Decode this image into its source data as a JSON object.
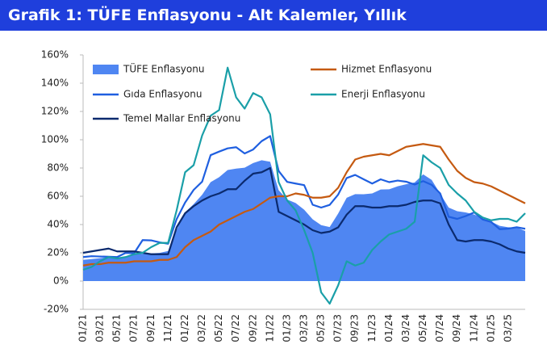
{
  "chart_data": {
    "type": "line",
    "title": "Grafik 1: TÜFE Enflasyonu - Alt Kalemler, Yıllık",
    "categories": [
      "01/21",
      null,
      "03/21",
      null,
      "05/21",
      null,
      "07/21",
      null,
      "09/21",
      null,
      "11/21",
      null,
      "01/22",
      null,
      "03/22",
      null,
      "05/22",
      null,
      "07/22",
      null,
      "09/22",
      null,
      "11/22",
      null,
      "01/23",
      null,
      "03/23",
      null,
      "05/23",
      null,
      "07/23",
      null,
      "09/23",
      null,
      "11/23",
      null,
      "01/24",
      null,
      "03/24",
      null,
      "05/24",
      null,
      "07/24",
      null,
      "09/24",
      null,
      "11/24",
      null,
      "01/25",
      null,
      "03/25",
      null,
      null
    ],
    "series": [
      {
        "name": "TÜFE Enflasyonu",
        "style": "area",
        "color": "#4f86f2",
        "values": [
          15,
          15.6,
          16.2,
          17.1,
          16.6,
          17.5,
          19,
          19.3,
          19.6,
          19.9,
          21.3,
          36.1,
          48.7,
          54.4,
          61.1,
          70,
          73.5,
          78.6,
          79.6,
          80.2,
          83.5,
          85.5,
          84.4,
          64.3,
          57.7,
          55.2,
          50.5,
          43.7,
          39.6,
          38.2,
          47.8,
          58.9,
          61.5,
          61.4,
          62,
          64.8,
          64.9,
          67.1,
          68.5,
          69.8,
          75.5,
          71.6,
          61.8,
          52,
          49.4,
          48.6,
          47.1,
          44.4,
          42.1,
          39.1,
          38.1,
          37.9,
          35.4
        ]
      },
      {
        "name": "Gıda Enflasyonu",
        "style": "line",
        "color": "#1f5fe0",
        "values": [
          17,
          17.6,
          17.4,
          17.2,
          17,
          19.9,
          19.7,
          29,
          28.8,
          27.4,
          26.4,
          43.8,
          55.6,
          64.5,
          70.3,
          89.1,
          91.6,
          93.9,
          94.7,
          90.3,
          93.1,
          99,
          102.6,
          77.9,
          70.2,
          69,
          67.9,
          54,
          52,
          53.9,
          61.2,
          72.9,
          75.1,
          72,
          69,
          72,
          70,
          71.1,
          70.3,
          68.3,
          70.7,
          68.1,
          62,
          45.5,
          44,
          46,
          48.6,
          43.6,
          41.8,
          36.7,
          37.1,
          38.1,
          37
        ]
      },
      {
        "name": "Temel Mallar Enflasyonu",
        "style": "line",
        "color": "#0b2a6e",
        "values": [
          20,
          21,
          22,
          23,
          21,
          21,
          21,
          20,
          19,
          19,
          19,
          38,
          48,
          53,
          57,
          60,
          62,
          65,
          65,
          71,
          76,
          77,
          80,
          49,
          46,
          43,
          40,
          36,
          34,
          35,
          38,
          47,
          53,
          53,
          52,
          52,
          53,
          53,
          54,
          56,
          57,
          57,
          55,
          40,
          29,
          28,
          29,
          29,
          28,
          26,
          23,
          21,
          20
        ]
      },
      {
        "name": "Hizmet Enflasyonu",
        "style": "line",
        "color": "#c55a11",
        "values": [
          11,
          12,
          12,
          13,
          13,
          13,
          14,
          14,
          14,
          15,
          15,
          17,
          24,
          29,
          32,
          35,
          40,
          43,
          46,
          49,
          51,
          55,
          59,
          60,
          60,
          62,
          61,
          59,
          59,
          60,
          66,
          77,
          86,
          88,
          89,
          90,
          89,
          92,
          95,
          96,
          97,
          96,
          95,
          86,
          78,
          73,
          70,
          69,
          67,
          64,
          61,
          58,
          55
        ]
      },
      {
        "name": "Enerji Enflasyonu",
        "style": "line",
        "color": "#1a9fa8",
        "values": [
          8,
          10,
          14,
          17,
          16,
          17,
          19,
          20,
          24,
          27,
          27,
          50,
          77,
          82,
          103,
          117,
          121,
          151,
          130,
          122,
          133,
          130,
          118,
          70,
          57,
          50,
          36,
          20,
          -8,
          -16,
          -3,
          14,
          11,
          13,
          22,
          28,
          33,
          35,
          37,
          42,
          89,
          84,
          80,
          68,
          62,
          57,
          49,
          45,
          43,
          44,
          44,
          42,
          48
        ]
      }
    ],
    "ylim": [
      -20,
      160
    ],
    "yticks": [
      {
        "value": -20,
        "label": "-20%"
      },
      {
        "value": 0,
        "label": "0%"
      },
      {
        "value": 20,
        "label": "20%"
      },
      {
        "value": 40,
        "label": "40%"
      },
      {
        "value": 60,
        "label": "60%"
      },
      {
        "value": 80,
        "label": "80%"
      },
      {
        "value": 100,
        "label": "100%"
      },
      {
        "value": 120,
        "label": "120%"
      },
      {
        "value": 140,
        "label": "140%"
      },
      {
        "value": 160,
        "label": "160%"
      }
    ],
    "grid": false
  }
}
